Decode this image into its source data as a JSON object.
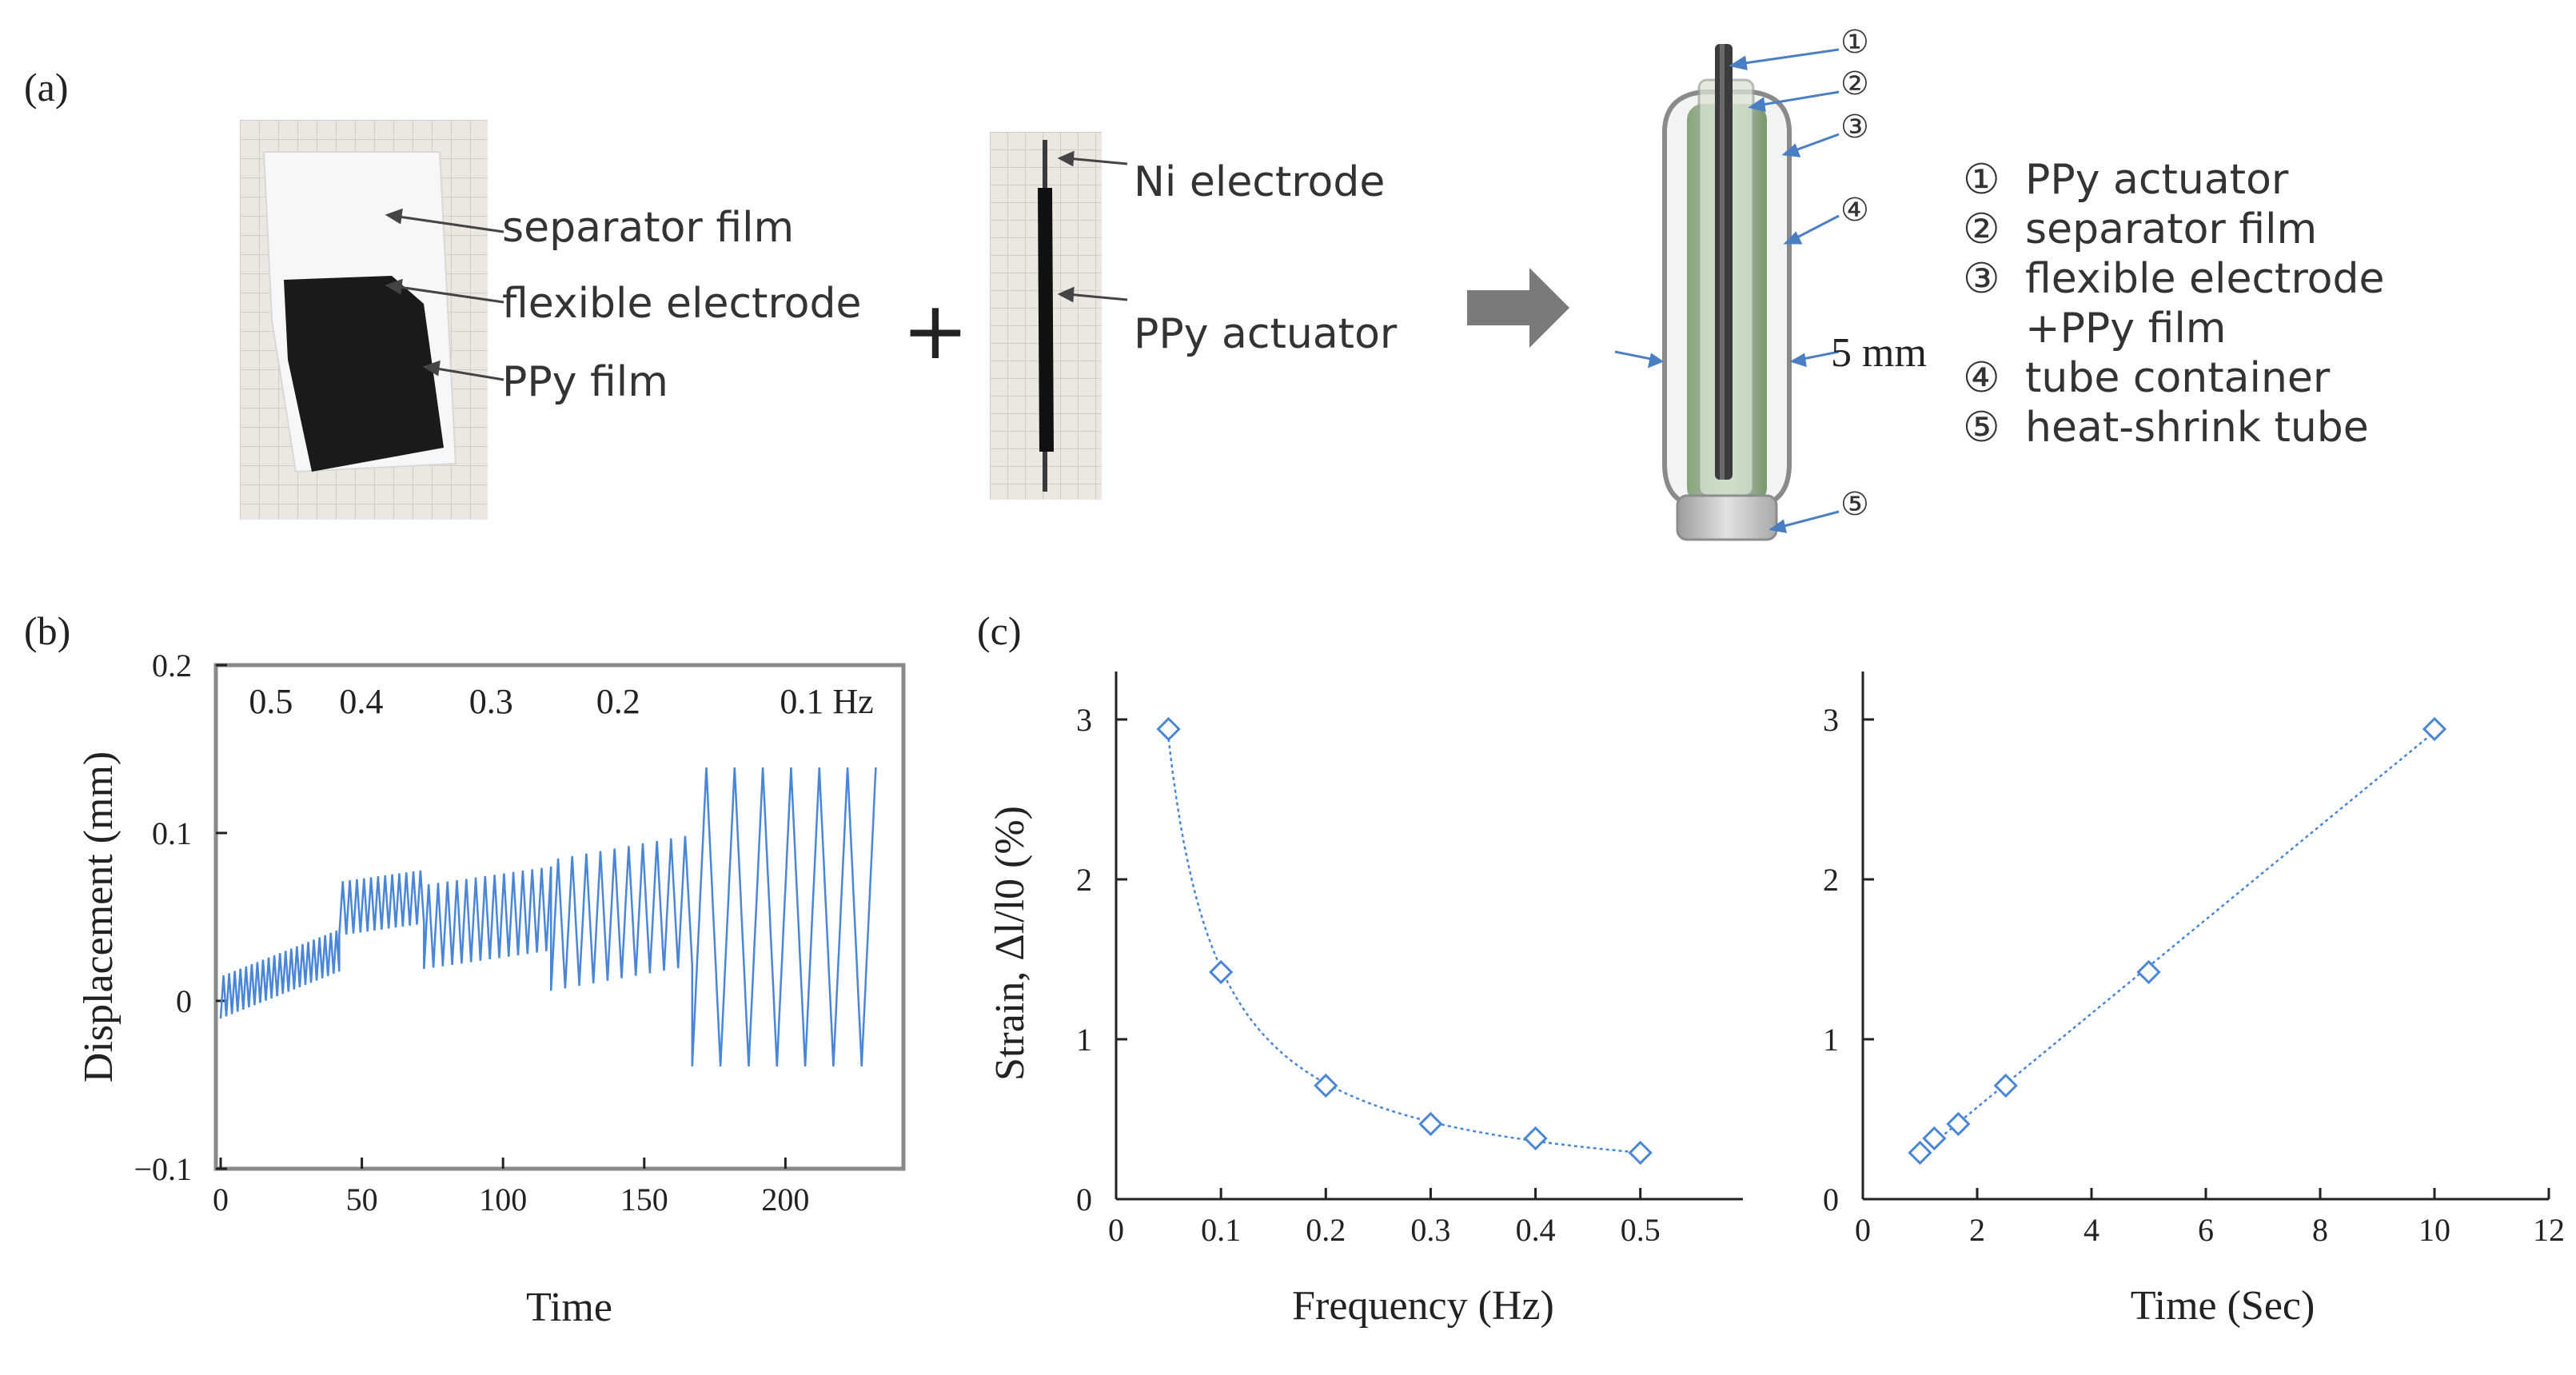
{
  "panel_labels": {
    "a": "(a)",
    "b": "(b)",
    "c": "(c)"
  },
  "photo1": {
    "labels": [
      "separator film",
      "flexible electrode",
      "PPy film"
    ]
  },
  "plus_symbol": "+",
  "photo2": {
    "labels": [
      "Ni electrode",
      "PPy actuator"
    ]
  },
  "schematic": {
    "markers": [
      "①",
      "②",
      "③",
      "④",
      "⑤"
    ],
    "dimension_label": "5 mm"
  },
  "legend": {
    "items": [
      {
        "marker": "①",
        "text": "PPy actuator"
      },
      {
        "marker": "②",
        "text": "separator film"
      },
      {
        "marker": "③",
        "text": "flexible electrode"
      },
      {
        "marker": "",
        "text": "+PPy film"
      },
      {
        "marker": "④",
        "text": "tube container"
      },
      {
        "marker": "⑤",
        "text": "heat-shrink tube"
      }
    ]
  },
  "chart_data": [
    {
      "type": "line",
      "panel": "(b)",
      "xlabel": "Time",
      "ylabel": "Displacement (mm)",
      "xlim": [
        0,
        235
      ],
      "ylim": [
        -0.1,
        0.2
      ],
      "x_ticks": [
        "0",
        "50",
        "100",
        "150",
        "200"
      ],
      "y_ticks": [
        "−0.1",
        "0",
        "0.1",
        "0.2"
      ],
      "annotations": [
        "0.5",
        "0.4",
        "0.3",
        "0.2",
        "0.1 Hz"
      ],
      "segments": [
        {
          "frequency": 0.5,
          "t_start": 0,
          "t_end": 42,
          "base_start": 0.002,
          "base_end": 0.03,
          "amplitude": 0.025
        },
        {
          "frequency": 0.4,
          "t_start": 42,
          "t_end": 72,
          "base_start": 0.055,
          "base_end": 0.062,
          "amplitude": 0.032
        },
        {
          "frequency": 0.3,
          "t_start": 72,
          "t_end": 117,
          "base_start": 0.044,
          "base_end": 0.055,
          "amplitude": 0.05
        },
        {
          "frequency": 0.2,
          "t_start": 117,
          "t_end": 167,
          "base_start": 0.045,
          "base_end": 0.06,
          "amplitude": 0.078
        },
        {
          "frequency": 0.1,
          "t_start": 167,
          "t_end": 232,
          "base_start": 0.05,
          "base_end": 0.05,
          "amplitude": 0.178
        }
      ]
    },
    {
      "type": "scatter",
      "panel": "(c) left",
      "xlabel": "Frequency (Hz)",
      "ylabel": "Strain, Δl/l0 (%)",
      "xlim": [
        0,
        0.55
      ],
      "ylim": [
        0,
        3.3
      ],
      "x_ticks": [
        "0",
        "0.1",
        "0.2",
        "0.3",
        "0.4",
        "0.5"
      ],
      "y_ticks": [
        "0",
        "1",
        "2",
        "3"
      ],
      "x": [
        0.05,
        0.1,
        0.2,
        0.3,
        0.4,
        0.5
      ],
      "y": [
        2.94,
        1.42,
        0.71,
        0.47,
        0.38,
        0.29
      ],
      "trendline": "power"
    },
    {
      "type": "scatter",
      "panel": "(c) right",
      "xlabel": "Time (Sec)",
      "ylabel": "",
      "xlim": [
        0,
        12
      ],
      "ylim": [
        0,
        3.3
      ],
      "x_ticks": [
        "0",
        "2",
        "4",
        "6",
        "8",
        "10",
        "12"
      ],
      "y_ticks": [
        "0",
        "1",
        "2",
        "3"
      ],
      "x": [
        1,
        1.25,
        1.67,
        2.5,
        5,
        10
      ],
      "y": [
        0.29,
        0.38,
        0.47,
        0.71,
        1.42,
        2.94
      ],
      "trendline": "linear"
    }
  ],
  "colors": {
    "series": "#4a86d8",
    "axis": "#222222",
    "frame": "#8a8a8a",
    "arrow": "#4a7fc4"
  }
}
